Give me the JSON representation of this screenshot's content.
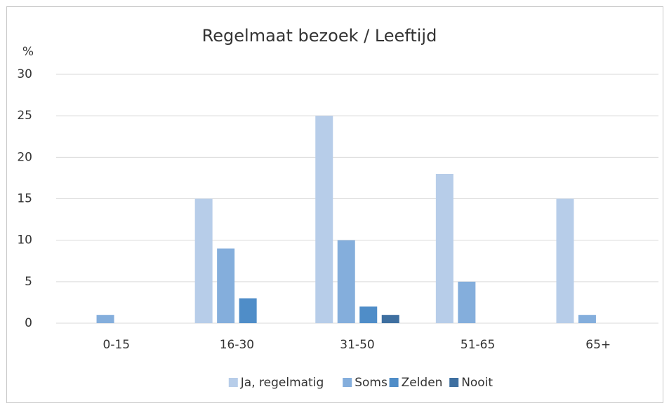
{
  "chart_data": {
    "type": "bar",
    "title": "Regelmaat bezoek / Leeftijd",
    "y_label": "%",
    "categories": [
      "0-15",
      "16-30",
      "31-50",
      "51-65",
      "65+"
    ],
    "series": [
      {
        "name": "Ja, regelmatig",
        "color": "#b7cde9",
        "values": [
          0,
          15,
          25,
          18,
          15
        ]
      },
      {
        "name": "Soms",
        "color": "#84aedc",
        "values": [
          1,
          9,
          10,
          5,
          1
        ]
      },
      {
        "name": "Zelden",
        "color": "#4f8dc8",
        "values": [
          0,
          3,
          2,
          0,
          0
        ]
      },
      {
        "name": "Nooit",
        "color": "#3e6fa0",
        "values": [
          0,
          0,
          1,
          0,
          0
        ]
      }
    ],
    "ylim": [
      0,
      30
    ],
    "yticks": [
      0,
      5,
      10,
      15,
      20,
      25,
      30
    ],
    "grid": true,
    "legend": "bottom"
  }
}
